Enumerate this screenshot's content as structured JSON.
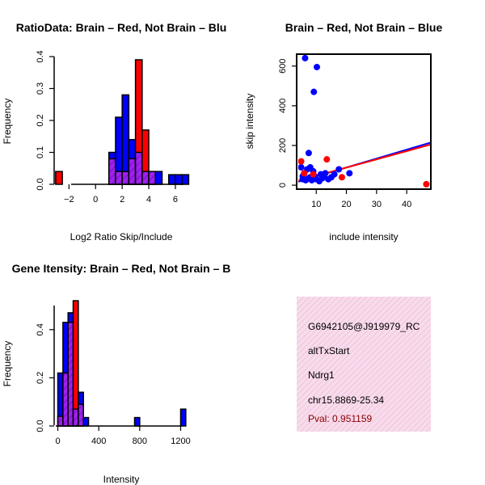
{
  "colors": {
    "brain": "#ff0000",
    "not_brain": "#0000ff",
    "overlap": "#a020f0",
    "info_bg": "#f7dcec",
    "info_hatch": "#f0b8d8",
    "pval": "#8b0000"
  },
  "chart_data": [
    {
      "id": "hist_ratio",
      "type": "bar",
      "title": "RatioData: Brain – Red, Not Brain – Blu",
      "xlabel": "Log2 Ratio Skip/Include",
      "ylabel": "Frequency",
      "xlim": [
        -3.6,
        7.4
      ],
      "ylim": [
        0,
        0.4
      ],
      "bin_width": 0.5,
      "bin_starts": [
        -3.0,
        1.0,
        1.5,
        2.0,
        2.5,
        3.0,
        3.5,
        4.0,
        4.5,
        5.5,
        6.0,
        6.5
      ],
      "series": [
        {
          "name": "Not Brain",
          "values": [
            0.0,
            0.1,
            0.21,
            0.28,
            0.14,
            0.1,
            0.04,
            0.04,
            0.04,
            0.03,
            0.03,
            0.03
          ]
        },
        {
          "name": "Brain",
          "values": [
            0.04,
            0.08,
            0.04,
            0.04,
            0.08,
            0.39,
            0.17,
            0.04,
            0.0,
            0.0,
            0.0,
            0.0
          ]
        }
      ],
      "xticks": [
        -2,
        0,
        2,
        4,
        6
      ],
      "xtick_labels": [
        "−2",
        "0",
        "2",
        "4",
        "6"
      ],
      "yticks": [
        0.0,
        0.1,
        0.2,
        0.3,
        0.4
      ],
      "ytick_labels": [
        "0.0",
        "0.1",
        "0.2",
        "0.3",
        "0.4"
      ]
    },
    {
      "id": "scatter",
      "type": "scatter",
      "title": "Brain – Red, Not Brain – Blue",
      "xlabel": "include intensity",
      "ylabel": "skip intensity",
      "xlim": [
        3.5,
        48
      ],
      "ylim": [
        -20,
        660
      ],
      "xticks": [
        10,
        20,
        30,
        40
      ],
      "xtick_labels": [
        "10",
        "20",
        "30",
        "40"
      ],
      "yticks": [
        0,
        200,
        400,
        600
      ],
      "ytick_labels": [
        "0",
        "200",
        "400",
        "600"
      ],
      "series": [
        {
          "name": "Not Brain",
          "points": [
            [
              6.3,
              640
            ],
            [
              10.2,
              595
            ],
            [
              9.2,
              470
            ],
            [
              7.5,
              162
            ],
            [
              5.0,
              90
            ],
            [
              6.0,
              60
            ],
            [
              7.0,
              80
            ],
            [
              8.0,
              40
            ],
            [
              9.0,
              70
            ],
            [
              10.0,
              30
            ],
            [
              11.5,
              55
            ],
            [
              12.5,
              45
            ],
            [
              13.0,
              60
            ],
            [
              14.0,
              30
            ],
            [
              15.0,
              40
            ],
            [
              17.5,
              80
            ],
            [
              21.0,
              60
            ],
            [
              5.5,
              30
            ],
            [
              6.5,
              25
            ],
            [
              7.5,
              35
            ],
            [
              8.5,
              25
            ],
            [
              11.0,
              20
            ],
            [
              12.0,
              35
            ],
            [
              16.0,
              55
            ],
            [
              9.5,
              45
            ],
            [
              5.5,
              45
            ],
            [
              8.0,
              90
            ]
          ]
        },
        {
          "name": "Brain",
          "points": [
            [
              5.0,
              120
            ],
            [
              13.5,
              130
            ],
            [
              18.5,
              40
            ],
            [
              46.5,
              5
            ],
            [
              6.0,
              60
            ],
            [
              9.0,
              55
            ]
          ]
        }
      ],
      "fit_lines": [
        {
          "name": "Not Brain",
          "x": [
            3.5,
            48
          ],
          "y": [
            15,
            215
          ]
        },
        {
          "name": "Brain",
          "x": [
            3.5,
            48
          ],
          "y": [
            20,
            205
          ]
        }
      ]
    },
    {
      "id": "hist_intensity",
      "type": "bar",
      "title": "Gene Itensity: Brain – Red, Not Brain – B",
      "xlabel": "Intensity",
      "ylabel": "Frequency",
      "xlim": [
        -20,
        1275
      ],
      "ylim": [
        0,
        0.5
      ],
      "bin_width": 50,
      "bin_starts": [
        0,
        50,
        100,
        150,
        200,
        250,
        750,
        1200
      ],
      "series": [
        {
          "name": "Not Brain",
          "values": [
            0.22,
            0.43,
            0.47,
            0.07,
            0.14,
            0.035,
            0.035,
            0.07
          ]
        },
        {
          "name": "Brain",
          "values": [
            0.04,
            0.22,
            0.43,
            0.52,
            0.09,
            0.0,
            0.0,
            0.0
          ]
        }
      ],
      "xticks": [
        0,
        400,
        800,
        1200
      ],
      "xtick_labels": [
        "0",
        "400",
        "800",
        "1200"
      ],
      "yticks": [
        0.0,
        0.2,
        0.4
      ],
      "ytick_labels": [
        "0.0",
        "0.2",
        "0.4"
      ]
    }
  ],
  "info_panel": {
    "id": "G6942105@J919979_RC",
    "event_type": "altTxStart",
    "gene": "Ndrg1",
    "location": "chr15.8869-25.34",
    "pval": "Pval: 0.951159"
  }
}
